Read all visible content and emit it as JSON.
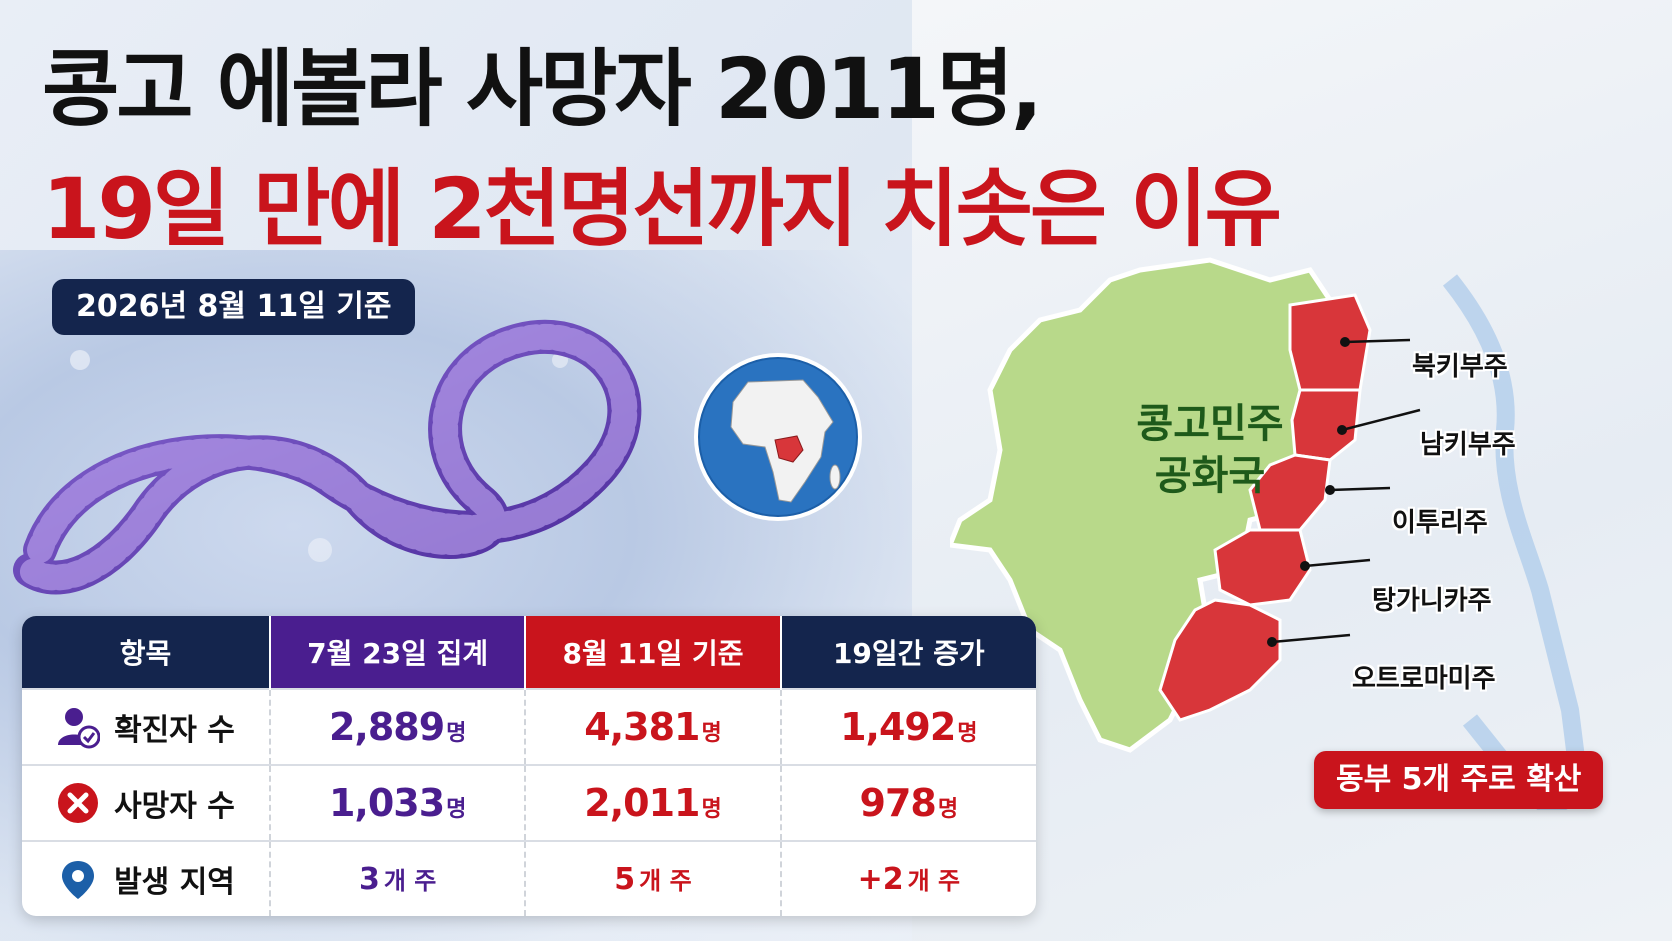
{
  "title": {
    "line1": "콩고 에볼라 사망자 2011명,",
    "line2": "19일 만에 2천명선까지 치솟은 이유"
  },
  "date_badge": "2026년 8월 11일 기준",
  "map": {
    "country_label_line1": "콩고민주",
    "country_label_line2": "공화국",
    "provinces": [
      "북키부주",
      "남키부주",
      "이투리주",
      "탕가니카주",
      "오트로마미주"
    ],
    "spread_badge": "동부 5개 주로 확산",
    "colors": {
      "country": "#b8d98a",
      "affected": "#d8363a",
      "water": "#a9c9ea"
    }
  },
  "table": {
    "headers": {
      "item": "항목",
      "july": "7월 23일 집계",
      "aug": "8월 11일 기준",
      "increase": "19일간 증가"
    },
    "rows": [
      {
        "icon": "person-check-icon",
        "label": "확진자 수",
        "july": "2,889",
        "july_unit": "명",
        "aug": "4,381",
        "aug_unit": "명",
        "increase": "1,492",
        "increase_unit": "명"
      },
      {
        "icon": "x-circle-icon",
        "label": "사망자 수",
        "july": "1,033",
        "july_unit": "명",
        "aug": "2,011",
        "aug_unit": "명",
        "increase": "978",
        "increase_unit": "명"
      },
      {
        "icon": "location-pin-icon",
        "label": "발생 지역",
        "july": "3",
        "july_unit": "개 주",
        "aug": "5",
        "aug_unit": "개 주",
        "increase": "+2",
        "increase_unit": "개 주"
      }
    ]
  },
  "colors": {
    "title_black": "#111111",
    "title_red": "#c9141c",
    "navy": "#14254d",
    "purple": "#4a1e8f",
    "red": "#c9141c"
  }
}
